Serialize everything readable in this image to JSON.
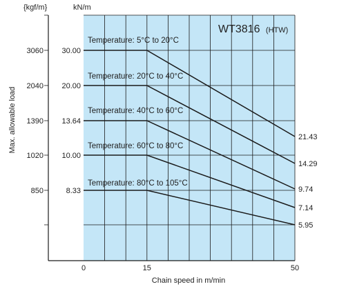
{
  "chart_data": {
    "type": "line",
    "model_name": "WT3816",
    "model_suffix": "(HTW)",
    "xlabel": "Chain speed in m/min",
    "ylabel": "Max. allowable load",
    "y_unit_left": "{kgf/m}",
    "y_unit_right": "kN/m",
    "xlim": [
      0,
      50
    ],
    "x_ticks": [
      0,
      15,
      50
    ],
    "x_grid": [
      5,
      10,
      15,
      20,
      25,
      30,
      35,
      40,
      45
    ],
    "y_ticks_kn": [
      "30.00",
      "20.00",
      "13.64",
      "10.00",
      "8.33"
    ],
    "y_ticks_kgf": [
      "3060",
      "2040",
      "1390",
      "1020",
      "850"
    ],
    "end_labels": [
      "21.43",
      "14.29",
      "9.74",
      "7.14",
      "5.95"
    ],
    "background_color": "#c4e6f7",
    "series": [
      {
        "name": "Temperature: 5°C to 20°C",
        "x": [
          0,
          15,
          50
        ],
        "y": [
          30.0,
          30.0,
          21.43
        ]
      },
      {
        "name": "Temperature: 20°C to 40°C",
        "x": [
          0,
          15,
          50
        ],
        "y": [
          20.0,
          20.0,
          14.29
        ]
      },
      {
        "name": "Temperature: 40°C to 60°C",
        "x": [
          0,
          15,
          50
        ],
        "y": [
          13.64,
          13.64,
          9.74
        ]
      },
      {
        "name": "Temperature: 60°C to 80°C",
        "x": [
          0,
          15,
          50
        ],
        "y": [
          10.0,
          10.0,
          7.14
        ]
      },
      {
        "name": "Temperature: 80°C to 105°C",
        "x": [
          0,
          15,
          50
        ],
        "y": [
          8.33,
          8.33,
          5.95
        ]
      }
    ]
  }
}
